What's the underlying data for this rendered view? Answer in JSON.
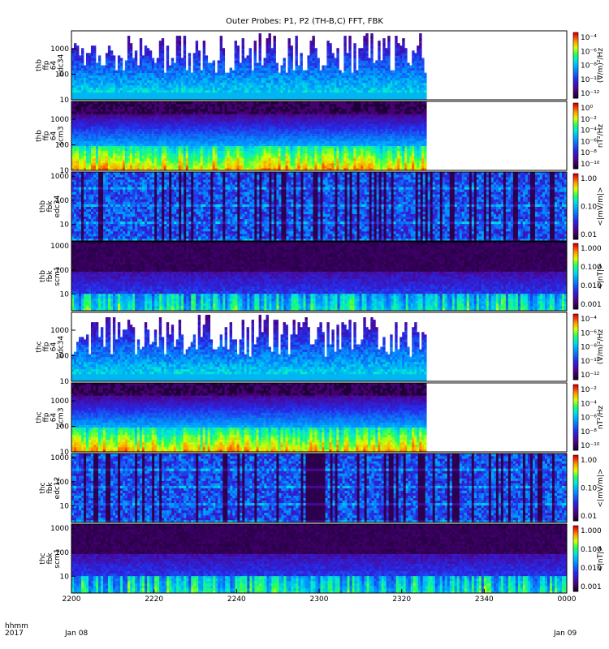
{
  "title": "Outer Probes: P1, P2 (TH-B,C) FFT, FBK",
  "time_axis": {
    "label_line1": "hhmm",
    "label_line2": "2017",
    "ticks": [
      "2200",
      "2220",
      "2240",
      "2300",
      "2320",
      "2340",
      "0000"
    ],
    "date_left": "Jan 08",
    "date_right": "Jan 09"
  },
  "chart_data": [
    {
      "type": "heatmap",
      "label": [
        "thb",
        "ffp",
        "64",
        "edc34"
      ],
      "y_ticks": [
        "1000",
        "100",
        "10"
      ],
      "ylim": [
        10,
        5000
      ],
      "ylog": true,
      "colorbar_ticks": [
        "10⁻⁴",
        "10⁻⁶",
        "10⁻⁸",
        "10⁻¹⁰",
        "10⁻¹²"
      ],
      "colorbar_label": "(V/m)²/Hz",
      "coverage_end": "2326",
      "style": "spiky"
    },
    {
      "type": "heatmap",
      "label": [
        "thb",
        "ffp",
        "64",
        "scm3"
      ],
      "y_ticks": [
        "1000",
        "100",
        "10"
      ],
      "ylim": [
        10,
        5000
      ],
      "ylog": true,
      "colorbar_ticks": [
        "10⁰",
        "10⁻²",
        "10⁻⁴",
        "10⁻⁶",
        "10⁻⁸",
        "10⁻¹⁰"
      ],
      "colorbar_label": "nT²/Hz",
      "coverage_end": "2326",
      "style": "band"
    },
    {
      "type": "heatmap",
      "label": [
        "thb",
        "fbk",
        "edc34"
      ],
      "y_ticks": [
        "1000",
        "100",
        "10"
      ],
      "ylim": [
        2,
        1500
      ],
      "ylog": true,
      "colorbar_ticks": [
        "1.00",
        "0.10",
        "0.01"
      ],
      "colorbar_label": "<|mV/m|>",
      "coverage_end": "0000",
      "style": "fbk"
    },
    {
      "type": "heatmap",
      "label": [
        "thb",
        "fbk",
        "scm1"
      ],
      "y_ticks": [
        "1000",
        "100",
        "10"
      ],
      "ylim": [
        2,
        1500
      ],
      "ylog": true,
      "colorbar_ticks": [
        "1.000",
        "0.100",
        "0.010",
        "0.001"
      ],
      "colorbar_label": "<|nT|>",
      "coverage_end": "0000",
      "style": "fbks"
    },
    {
      "type": "heatmap",
      "label": [
        "thc",
        "ffp",
        "64",
        "edc34"
      ],
      "y_ticks": [
        "1000",
        "100",
        "10"
      ],
      "ylim": [
        10,
        5000
      ],
      "ylog": true,
      "colorbar_ticks": [
        "10⁻⁴",
        "10⁻⁶",
        "10⁻⁸",
        "10⁻¹⁰",
        "10⁻¹²"
      ],
      "colorbar_label": "(V/m)²/Hz",
      "coverage_end": "2326",
      "style": "spiky"
    },
    {
      "type": "heatmap",
      "label": [
        "thc",
        "ffp",
        "64",
        "scm3"
      ],
      "y_ticks": [
        "1000",
        "100",
        "10"
      ],
      "ylim": [
        10,
        5000
      ],
      "ylog": true,
      "colorbar_ticks": [
        "10⁻²",
        "10⁻⁴",
        "10⁻⁶",
        "10⁻⁸",
        "10⁻¹⁰"
      ],
      "colorbar_label": "nT²/Hz",
      "coverage_end": "2326",
      "style": "band"
    },
    {
      "type": "heatmap",
      "label": [
        "thc",
        "fbk",
        "edc12"
      ],
      "y_ticks": [
        "1000",
        "100",
        "10"
      ],
      "ylim": [
        2,
        1500
      ],
      "ylog": true,
      "colorbar_ticks": [
        "1.00",
        "0.10",
        "0.01"
      ],
      "colorbar_label": "<|mV/m|>",
      "coverage_end": "0000",
      "style": "fbk"
    },
    {
      "type": "heatmap",
      "label": [
        "thc",
        "fbk",
        "scm1"
      ],
      "y_ticks": [
        "1000",
        "100",
        "10"
      ],
      "ylim": [
        2,
        1500
      ],
      "ylog": true,
      "colorbar_ticks": [
        "1.000",
        "0.100",
        "0.010",
        "0.001"
      ],
      "colorbar_label": "<|nT|>",
      "coverage_end": "0000",
      "style": "fbks"
    }
  ]
}
